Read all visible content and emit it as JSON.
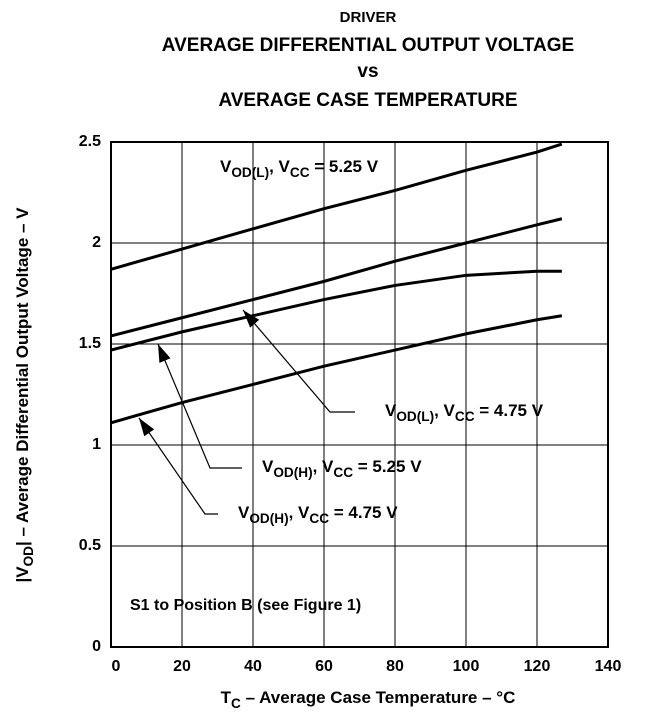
{
  "chart_data": {
    "type": "line",
    "title": [
      "DRIVER",
      "AVERAGE DIFFERENTIAL OUTPUT VOLTAGE",
      "vs",
      "AVERAGE CASE TEMPERATURE"
    ],
    "xlabel": [
      "T",
      "C",
      " – Average Case Temperature – °C"
    ],
    "ylabel": [
      "|V",
      "OD",
      "| – Average Differential Output Voltage – V"
    ],
    "note": "S1 to Position B (see Figure 1)",
    "x": [
      0,
      20,
      40,
      60,
      80,
      100,
      120,
      127
    ],
    "series": [
      {
        "color": "#000000",
        "values": [
          1.87,
          1.97,
          2.07,
          2.17,
          2.26,
          2.36,
          2.45,
          2.49
        ]
      },
      {
        "color": "#000000",
        "values": [
          1.54,
          1.63,
          1.72,
          1.81,
          1.91,
          2.0,
          2.09,
          2.12
        ]
      },
      {
        "color": "#000000",
        "values": [
          1.47,
          1.56,
          1.64,
          1.72,
          1.79,
          1.84,
          1.86,
          1.86
        ]
      },
      {
        "color": "#000000",
        "values": [
          1.11,
          1.21,
          1.3,
          1.39,
          1.47,
          1.55,
          1.62,
          1.64
        ]
      }
    ],
    "annotations": [
      {
        "series": 0,
        "parts": [
          "V",
          "OD(L)",
          ", V",
          "CC",
          " = 5.25 V"
        ]
      },
      {
        "series": 1,
        "parts": [
          "V",
          "OD(L)",
          ", V",
          "CC",
          " = 4.75 V"
        ]
      },
      {
        "series": 2,
        "parts": [
          "V",
          "OD(H)",
          ", V",
          "CC",
          " = 5.25 V"
        ]
      },
      {
        "series": 3,
        "parts": [
          "V",
          "OD(H)",
          ", V",
          "CC",
          " = 4.75 V"
        ]
      }
    ],
    "xlim": [
      0,
      140
    ],
    "xticks": [
      0,
      20,
      40,
      60,
      80,
      100,
      120,
      140
    ],
    "ylim": [
      0,
      2.5
    ],
    "yticks": [
      0,
      0.5,
      1,
      1.5,
      2,
      2.5
    ],
    "grid": true
  }
}
